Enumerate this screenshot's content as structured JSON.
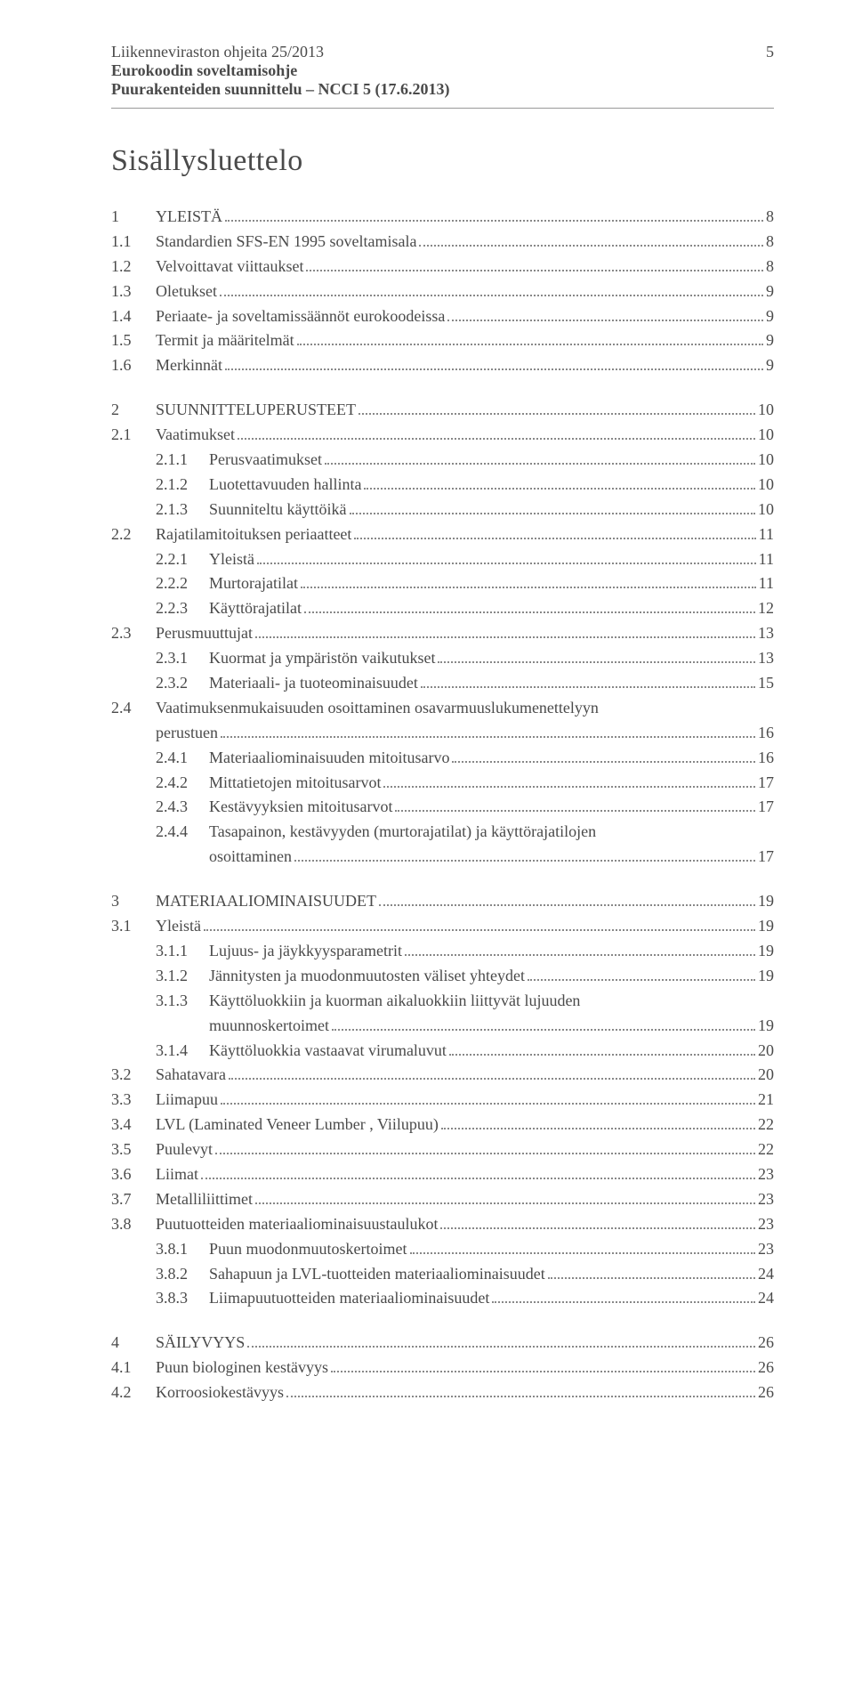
{
  "header": {
    "line1": "Liikenneviraston ohjeita 25/2013",
    "line2": "Eurokoodin soveltamisohje",
    "line3": "Puurakenteiden suunnittelu – NCCI 5 (17.6.2013)",
    "page_number": "5"
  },
  "toc_title": "Sisällysluettelo",
  "toc": [
    {
      "block": [
        {
          "level": 1,
          "num": "1",
          "label": "YLEISTÄ",
          "page": "8"
        },
        {
          "level": 2,
          "num": "1.1",
          "label": "Standardien SFS-EN 1995 soveltamisala",
          "page": "8"
        },
        {
          "level": 2,
          "num": "1.2",
          "label": "Velvoittavat viittaukset",
          "page": "8"
        },
        {
          "level": 2,
          "num": "1.3",
          "label": "Oletukset",
          "page": "9"
        },
        {
          "level": 2,
          "num": "1.4",
          "label": "Periaate- ja soveltamissäännöt eurokoodeissa",
          "page": "9"
        },
        {
          "level": 2,
          "num": "1.5",
          "label": "Termit ja määritelmät",
          "page": "9"
        },
        {
          "level": 2,
          "num": "1.6",
          "label": "Merkinnät",
          "page": "9"
        }
      ]
    },
    {
      "block": [
        {
          "level": 1,
          "num": "2",
          "label": "SUUNNITTELUPERUSTEET",
          "page": "10"
        },
        {
          "level": 2,
          "num": "2.1",
          "label": "Vaatimukset",
          "page": "10"
        },
        {
          "level": 3,
          "num": "2.1.1",
          "label": "Perusvaatimukset",
          "page": "10"
        },
        {
          "level": 3,
          "num": "2.1.2",
          "label": "Luotettavuuden hallinta",
          "page": "10"
        },
        {
          "level": 3,
          "num": "2.1.3",
          "label": "Suunniteltu käyttöikä",
          "page": "10"
        },
        {
          "level": 2,
          "num": "2.2",
          "label": "Rajatilamitoituksen periaatteet",
          "page": "11"
        },
        {
          "level": 3,
          "num": "2.2.1",
          "label": "Yleistä",
          "page": "11"
        },
        {
          "level": 3,
          "num": "2.2.2",
          "label": "Murtorajatilat",
          "page": "11"
        },
        {
          "level": 3,
          "num": "2.2.3",
          "label": "Käyttörajatilat",
          "page": "12"
        },
        {
          "level": 2,
          "num": "2.3",
          "label": "Perusmuuttujat",
          "page": "13"
        },
        {
          "level": 3,
          "num": "2.3.1",
          "label": "Kuormat ja ympäristön vaikutukset",
          "page": "13"
        },
        {
          "level": 3,
          "num": "2.3.2",
          "label": "Materiaali- ja tuoteominaisuudet",
          "page": "15"
        },
        {
          "level": 2,
          "num": "2.4",
          "label": "Vaatimuksenmukaisuuden osoittaminen osavarmuuslukumenettelyyn",
          "cont": "perustuen",
          "page": "16"
        },
        {
          "level": 3,
          "num": "2.4.1",
          "label": "Materiaaliominaisuuden mitoitusarvo",
          "page": "16"
        },
        {
          "level": 3,
          "num": "2.4.2",
          "label": "Mittatietojen mitoitusarvot",
          "page": "17"
        },
        {
          "level": 3,
          "num": "2.4.3",
          "label": "Kestävyyksien mitoitusarvot",
          "page": "17"
        },
        {
          "level": 3,
          "num": "2.4.4",
          "label": "Tasapainon, kestävyyden (murtorajatilat) ja käyttörajatilojen",
          "cont": "osoittaminen",
          "page": "17"
        }
      ]
    },
    {
      "block": [
        {
          "level": 1,
          "num": "3",
          "label": "MATERIAALIOMINAISUUDET",
          "page": "19"
        },
        {
          "level": 2,
          "num": "3.1",
          "label": "Yleistä",
          "page": "19"
        },
        {
          "level": 3,
          "num": "3.1.1",
          "label": "Lujuus- ja jäykkyysparametrit",
          "page": "19"
        },
        {
          "level": 3,
          "num": "3.1.2",
          "label": "Jännitysten ja muodonmuutosten väliset yhteydet",
          "page": "19"
        },
        {
          "level": 3,
          "num": "3.1.3",
          "label": "Käyttöluokkiin ja kuorman aikaluokkiin liittyvät lujuuden",
          "cont": "muunnoskertoimet",
          "page": "19"
        },
        {
          "level": 3,
          "num": "3.1.4",
          "label": "Käyttöluokkia vastaavat virumaluvut",
          "page": "20"
        },
        {
          "level": 2,
          "num": "3.2",
          "label": "Sahatavara",
          "page": "20"
        },
        {
          "level": 2,
          "num": "3.3",
          "label": "Liimapuu",
          "page": "21"
        },
        {
          "level": 2,
          "num": "3.4",
          "label": "LVL (Laminated Veneer Lumber , Viilupuu)",
          "page": "22"
        },
        {
          "level": 2,
          "num": "3.5",
          "label": "Puulevyt",
          "page": "22"
        },
        {
          "level": 2,
          "num": "3.6",
          "label": "Liimat",
          "page": "23"
        },
        {
          "level": 2,
          "num": "3.7",
          "label": "Metalliliittimet",
          "page": "23"
        },
        {
          "level": 2,
          "num": "3.8",
          "label": "Puutuotteiden materiaaliominaisuustaulukot",
          "page": "23"
        },
        {
          "level": 3,
          "num": "3.8.1",
          "label": "Puun muodonmuutoskertoimet",
          "page": "23"
        },
        {
          "level": 3,
          "num": "3.8.2",
          "label": "Sahapuun ja LVL-tuotteiden materiaaliominaisuudet",
          "page": "24"
        },
        {
          "level": 3,
          "num": "3.8.3",
          "label": "Liimapuutuotteiden materiaaliominaisuudet",
          "page": "24"
        }
      ]
    },
    {
      "block": [
        {
          "level": 1,
          "num": "4",
          "label": "SÄILYVYYS",
          "page": "26"
        },
        {
          "level": 2,
          "num": "4.1",
          "label": "Puun biologinen kestävyys",
          "page": "26"
        },
        {
          "level": 2,
          "num": "4.2",
          "label": "Korroosiokestävyys",
          "page": "26"
        }
      ]
    }
  ]
}
